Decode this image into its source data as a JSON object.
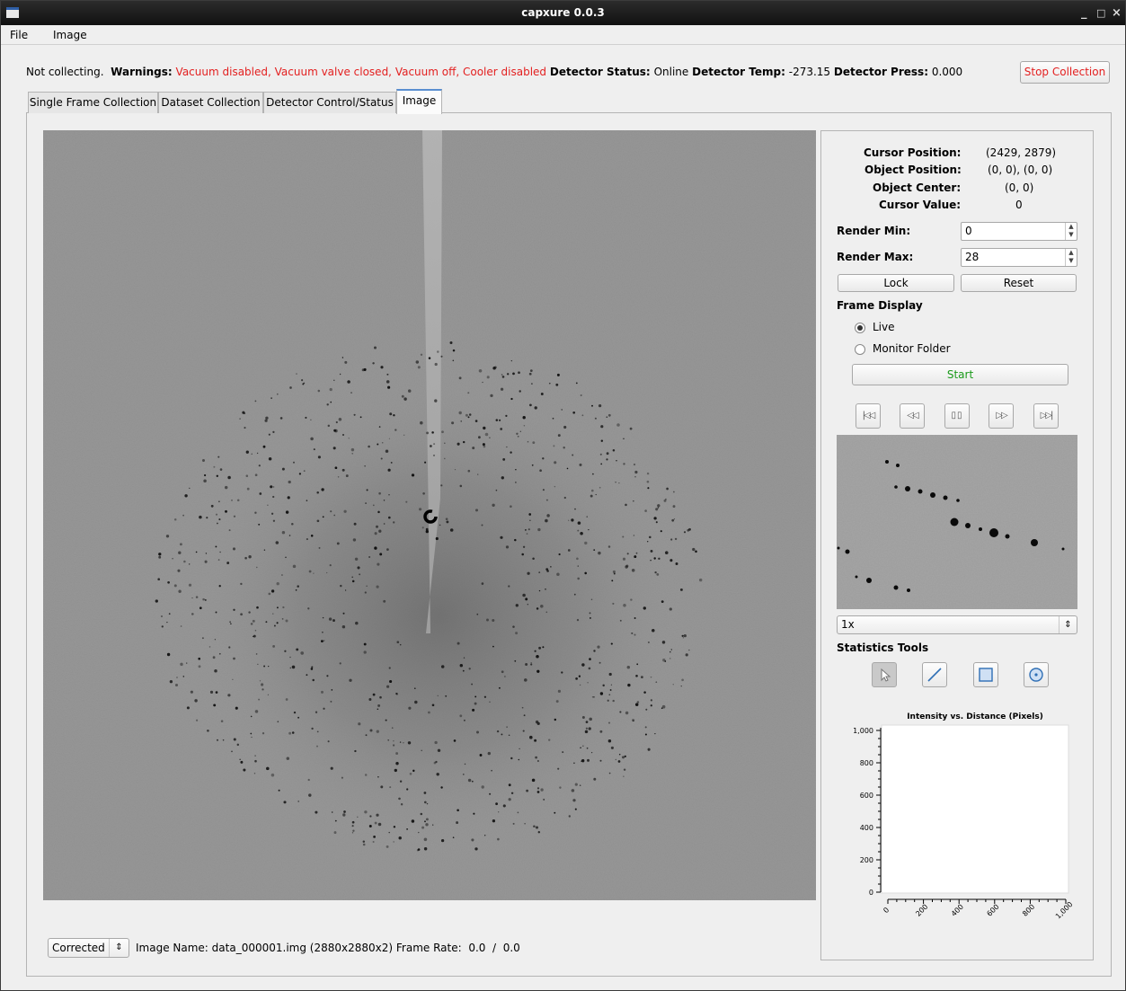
{
  "window": {
    "title": "capxure 0.0.3",
    "controls": [
      "_",
      "□",
      "×"
    ]
  },
  "menu": [
    "File",
    "Image"
  ],
  "status": {
    "collecting": "Not collecting.",
    "warnings_label": "Warnings:",
    "warnings": "Vacuum disabled, Vacuum valve closed, Vacuum off, Cooler disabled",
    "detector_status_label": "Detector Status:",
    "detector_status": "Online",
    "detector_temp_label": "Detector Temp:",
    "detector_temp": "-273.15",
    "detector_press_label": "Detector Press:",
    "detector_press": "0.000"
  },
  "stop_button": "Stop Collection",
  "tabs": [
    "Single Frame Collection",
    "Dataset Collection",
    "Detector Control/Status",
    "Image"
  ],
  "active_tab": "Image",
  "info": {
    "cursor_position_label": "Cursor Position:",
    "cursor_position": "(2429, 2879)",
    "object_position_label": "Object Position:",
    "object_position": "(0, 0), (0, 0)",
    "object_center_label": "Object Center:",
    "object_center": "(0, 0)",
    "cursor_value_label": "Cursor Value:",
    "cursor_value": "0"
  },
  "render": {
    "min_label": "Render Min:",
    "min_value": "0",
    "max_label": "Render Max:",
    "max_value": "28",
    "lock": "Lock",
    "reset": "Reset"
  },
  "frame_display": {
    "heading": "Frame Display",
    "live": "Live",
    "monitor": "Monitor Folder",
    "start": "Start",
    "start_color": "#1a9a1a"
  },
  "playback_icons": [
    "first-frame-icon",
    "previous-frame-icon",
    "pause-icon",
    "next-frame-icon",
    "last-frame-icon"
  ],
  "zoom_select": "1x",
  "statistics": {
    "heading": "Statistics Tools",
    "tools": [
      "pointer-tool-icon",
      "line-tool-icon",
      "rectangle-tool-icon",
      "circle-tool-icon"
    ]
  },
  "chart_data": {
    "type": "line",
    "title": "Intensity vs. Distance (Pixels)",
    "xlabel": "",
    "ylabel": "",
    "xlim": [
      0,
      1000
    ],
    "ylim": [
      0,
      1000
    ],
    "x_ticks": [
      "0",
      "200",
      "400",
      "600",
      "800",
      "1,000"
    ],
    "y_ticks": [
      "0",
      "200",
      "400",
      "600",
      "800",
      "1,000"
    ],
    "series": []
  },
  "bottom": {
    "mode": "Corrected",
    "image_name_label": "Image Name:",
    "image_name": "data_000001.img",
    "dims": "(2880x2880x2)",
    "frame_rate_label": "Frame Rate:",
    "frame_rate": "0.0",
    "sep": "/",
    "frame_rate_max": "0.0"
  }
}
